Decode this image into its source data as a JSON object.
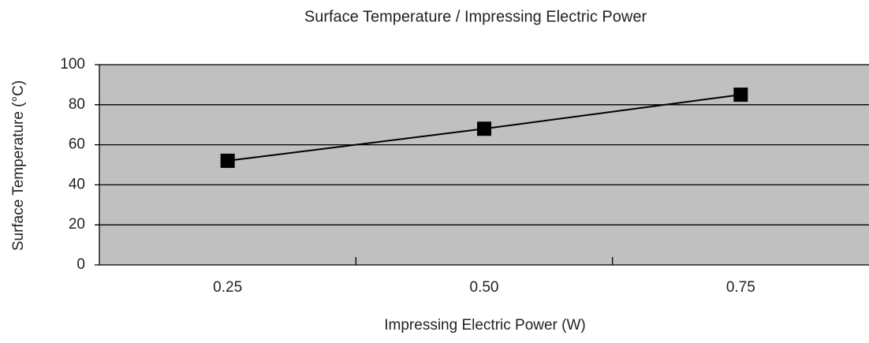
{
  "chart_data": {
    "type": "line",
    "title": "Surface Temperature / Impressing Electric Power",
    "x_label": "Impressing Electric Power (W)",
    "y_label": "Surface Temperature (°C)",
    "categories": [
      "0.25",
      "0.50",
      "0.75"
    ],
    "values": [
      52,
      68,
      85
    ],
    "color": "#000000",
    "plot_background": "#c0c0c0",
    "ylim": [
      0,
      100
    ],
    "yticks": [
      0,
      20,
      40,
      60,
      80,
      100
    ],
    "grid": true
  }
}
